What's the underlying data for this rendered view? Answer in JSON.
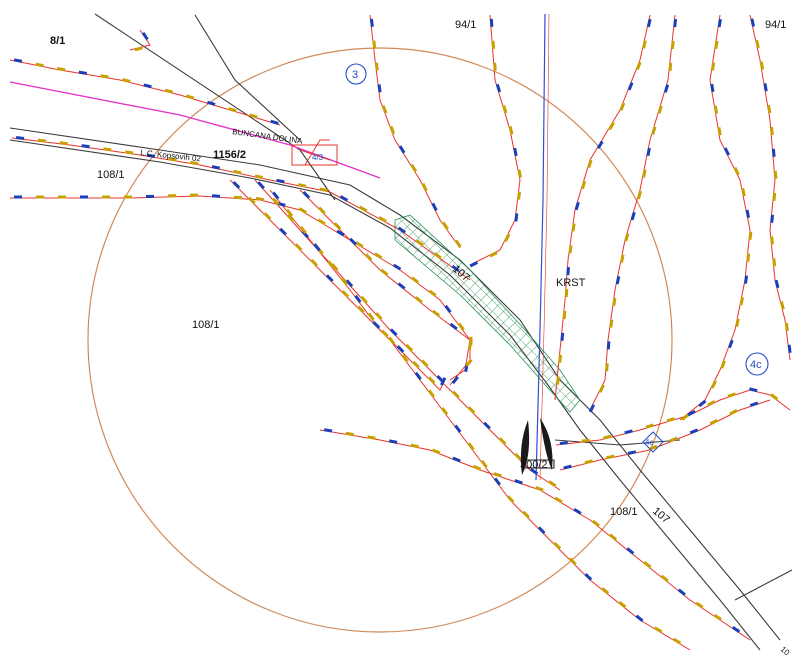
{
  "map": {
    "parcel_labels": [
      "94/1",
      "94/1",
      "108/1",
      "108/1",
      "108/1",
      "107",
      "107",
      "1156/2",
      "8/1"
    ],
    "place_names": [
      "BUNCANA DOLINA",
      "KRST",
      "L.C. Kopsovih 02"
    ],
    "markers": [
      "3",
      "4c",
      "4c"
    ],
    "partial_labels": [
      "300/2",
      "4/3",
      "10"
    ],
    "colors": {
      "contour": "#e8332a",
      "contour_tick": "#c8a000",
      "contour_tick_alt": "#1b3fb8",
      "road": "#3a3a3a",
      "circle": "#d08a5a",
      "magenta_line": "#e233c8",
      "blue_line": "#2f4fd6",
      "hatch": "#2a8f55",
      "marker": "#1e4fc8"
    }
  }
}
